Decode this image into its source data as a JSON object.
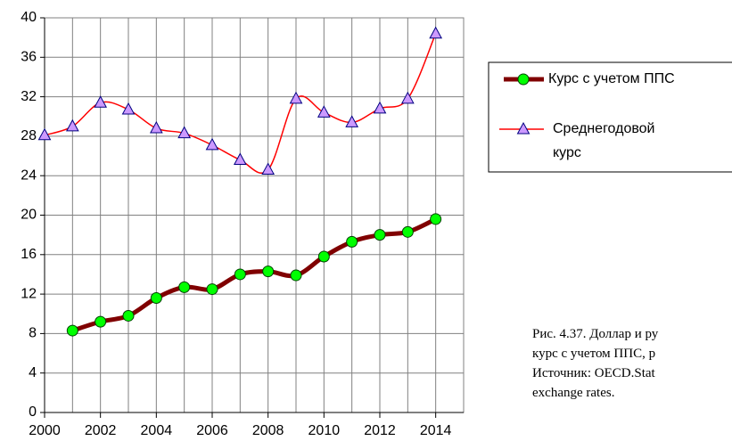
{
  "chart_data": {
    "type": "line",
    "x": [
      2000,
      2001,
      2002,
      2003,
      2004,
      2005,
      2006,
      2007,
      2008,
      2009,
      2010,
      2011,
      2012,
      2013,
      2014
    ],
    "series": [
      {
        "name": "Курс с учетом ППС",
        "color": "#800000",
        "marker_color": "#00ff00",
        "marker": "circle",
        "values": [
          null,
          8.3,
          9.2,
          9.8,
          11.6,
          12.7,
          12.5,
          14.0,
          14.3,
          13.9,
          15.8,
          17.3,
          18.0,
          18.3,
          19.6
        ]
      },
      {
        "name": "Среднегодовой курс",
        "color": "#ff0000",
        "marker_color": "#cc99ff",
        "marker": "triangle",
        "values": [
          28.1,
          29.0,
          31.4,
          30.7,
          28.8,
          28.3,
          27.1,
          25.6,
          24.6,
          31.8,
          30.4,
          29.4,
          30.8,
          31.8,
          38.4
        ]
      }
    ],
    "xlim": [
      2000,
      2015
    ],
    "xticks": [
      2000,
      2002,
      2004,
      2006,
      2008,
      2010,
      2012,
      2014
    ],
    "ylim": [
      0,
      40
    ],
    "yticks": [
      0,
      4,
      8,
      12,
      16,
      20,
      24,
      28,
      32,
      36,
      40
    ],
    "grid": true,
    "legend": "right",
    "caption": [
      "Рис. 4.37. Доллар и ру",
      "курс с учетом ППС, р",
      "Источник: OECD.Stat",
      "exchange rates."
    ]
  }
}
